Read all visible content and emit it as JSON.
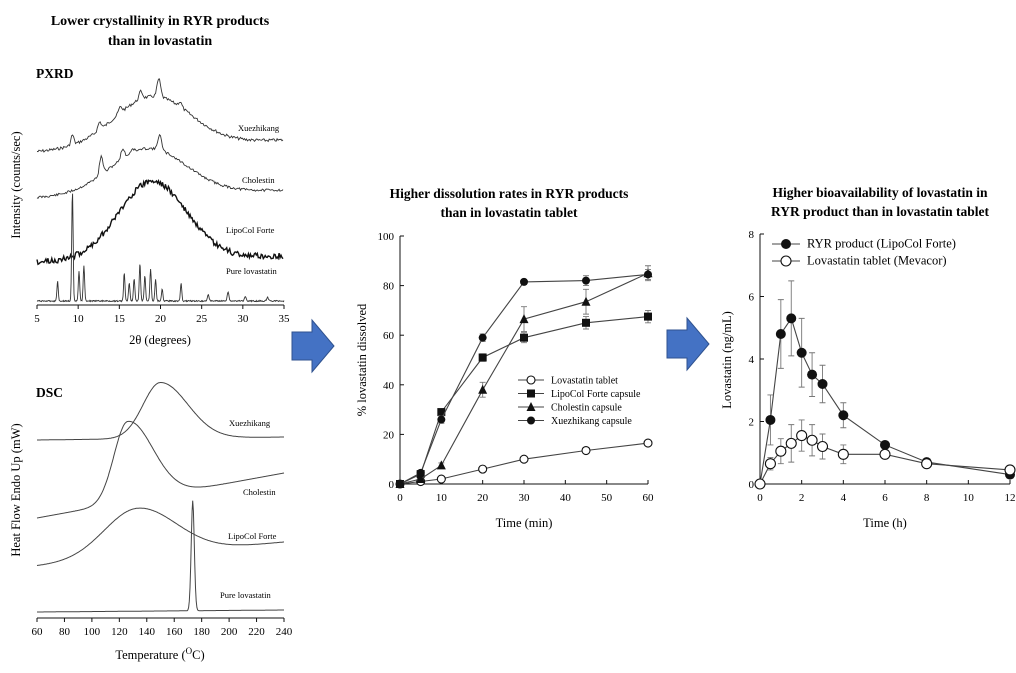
{
  "chart_data": [
    {
      "id": "pxrd",
      "type": "line",
      "heading": "Lower crystallinity in RYR products than in lovastatin",
      "heading_lines": [
        "Lower crystallinity in RYR products",
        "than in lovastatin"
      ],
      "panel_label": "PXRD",
      "xlabel": "2θ (degrees)",
      "ylabel": "Intensity (counts/sec)",
      "xlim": [
        5,
        35
      ],
      "xticks": [
        "5",
        "10",
        "15",
        "20",
        "25",
        "30",
        "35"
      ],
      "series": [
        {
          "name": "Xuezhikang"
        },
        {
          "name": "Cholestin"
        },
        {
          "name": "LipoCol Forte"
        },
        {
          "name": "Pure lovastatin"
        }
      ]
    },
    {
      "id": "dsc",
      "type": "line",
      "panel_label": "DSC",
      "xlabel": "Temperature (",
      "xlabel_sup": "O",
      "xlabel_end": "C)",
      "ylabel": "Heat Flow Endo Up (mW)",
      "xlim": [
        60,
        240
      ],
      "xticks": [
        "60",
        "80",
        "100",
        "120",
        "140",
        "160",
        "180",
        "200",
        "220",
        "240"
      ],
      "series": [
        {
          "name": "Xuezhikang"
        },
        {
          "name": "Cholestin"
        },
        {
          "name": "LipoCol Forte"
        },
        {
          "name": "Pure lovastatin"
        }
      ]
    },
    {
      "id": "dissolution",
      "type": "line",
      "title_lines": [
        "Higher dissolution rates in RYR products",
        "than in lovastatin tablet"
      ],
      "xlabel": "Time (min)",
      "ylabel": "% lovastatin dissolved",
      "xlim": [
        0,
        60
      ],
      "ylim": [
        0,
        100
      ],
      "xticks": [
        "0",
        "10",
        "20",
        "30",
        "40",
        "50",
        "60"
      ],
      "yticks": [
        "0",
        "20",
        "40",
        "60",
        "80",
        "100"
      ],
      "legend_position": "lower-right",
      "x": [
        0,
        5,
        10,
        20,
        30,
        45,
        60
      ],
      "series": [
        {
          "name": "Lovastatin tablet",
          "marker": "open-circle",
          "values": [
            0,
            1,
            2,
            6,
            10,
            13.5,
            16.5
          ],
          "err": [
            0,
            0,
            0,
            0,
            0,
            0,
            0
          ]
        },
        {
          "name": "LipoCol Forte capsule",
          "marker": "filled-square",
          "values": [
            0,
            4,
            29,
            51,
            59,
            65,
            67.5
          ],
          "err": [
            0,
            0,
            1,
            1.5,
            2,
            2.5,
            2.5
          ]
        },
        {
          "name": "Cholestin capsule",
          "marker": "filled-triangle",
          "values": [
            0,
            2,
            7.5,
            38,
            66.5,
            73.5,
            85
          ],
          "err": [
            0,
            0,
            1,
            3,
            5,
            5,
            3
          ]
        },
        {
          "name": "Xuezhikang capsule",
          "marker": "filled-circle",
          "values": [
            0,
            4.5,
            26,
            59,
            81.5,
            82,
            84.5
          ],
          "err": [
            0,
            0,
            1.5,
            1.5,
            1,
            2,
            2
          ]
        }
      ]
    },
    {
      "id": "pk",
      "type": "line",
      "title_lines": [
        "Higher bioavailability of lovastatin in",
        "RYR product than in lovastatin tablet"
      ],
      "xlabel": "Time (h)",
      "ylabel": "Lovastatin (ng/mL)",
      "xlim": [
        0,
        12
      ],
      "ylim": [
        0,
        8
      ],
      "xticks": [
        "0",
        "2",
        "4",
        "6",
        "8",
        "10",
        "12"
      ],
      "yticks": [
        "0",
        "2",
        "4",
        "6",
        "8"
      ],
      "legend_position": "top-left",
      "x": [
        0,
        0.5,
        1,
        1.5,
        2,
        2.5,
        3,
        4,
        6,
        8,
        12
      ],
      "series": [
        {
          "name": "RYR product (LipoCol Forte)",
          "marker": "filled-circle",
          "values": [
            0,
            2.05,
            4.8,
            5.3,
            4.2,
            3.5,
            3.2,
            2.2,
            1.25,
            0.7,
            0.3
          ],
          "err": [
            0,
            0.8,
            1.1,
            1.2,
            1.1,
            0.7,
            0.6,
            0.4,
            0.1,
            0.1,
            0.05
          ]
        },
        {
          "name": "Lovastatin tablet (Mevacor)",
          "marker": "open-circle",
          "values": [
            0,
            0.65,
            1.05,
            1.3,
            1.55,
            1.4,
            1.2,
            0.95,
            0.95,
            0.65,
            0.45
          ],
          "err": [
            0,
            0.2,
            0.4,
            0.6,
            0.5,
            0.5,
            0.4,
            0.3,
            0.1,
            0.1,
            0.05
          ]
        }
      ]
    }
  ],
  "colors": {
    "ink": "#111111",
    "arrow_fill": "#4472c4",
    "arrow_stroke": "#2f528f"
  }
}
